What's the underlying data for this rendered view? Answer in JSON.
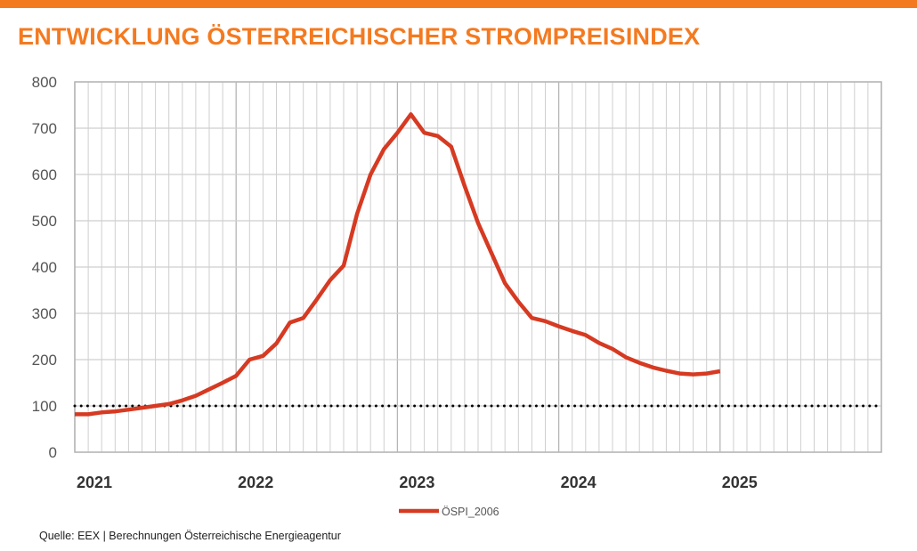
{
  "header": {
    "title": "ENTWICKLUNG ÖSTERREICHISCHER STROMPREISINDEX"
  },
  "footer": {
    "source": "Quelle: EEX | Berechnungen Österreichische Energieagentur"
  },
  "colors": {
    "accent": "#F47A20",
    "series": "#D63A22",
    "grid": "#CFCFCF",
    "reference": "#000000"
  },
  "chart_data": {
    "type": "line",
    "title": "",
    "xlabel": "",
    "ylabel": "",
    "ylim": [
      0,
      800
    ],
    "yticks": [
      0,
      100,
      200,
      300,
      400,
      500,
      600,
      700,
      800
    ],
    "xlim": [
      "2021-01",
      "2026-01"
    ],
    "xticks": [
      "2021",
      "2022",
      "2023",
      "2024",
      "2025"
    ],
    "grid": true,
    "legend": "bottom-center",
    "reference_line": {
      "y": 100,
      "style": "dotted"
    },
    "series": [
      {
        "name": "ÖSPI_2006",
        "x": [
          "2021-01",
          "2021-02",
          "2021-03",
          "2021-04",
          "2021-05",
          "2021-06",
          "2021-07",
          "2021-08",
          "2021-09",
          "2021-10",
          "2021-11",
          "2021-12",
          "2022-01",
          "2022-02",
          "2022-03",
          "2022-04",
          "2022-05",
          "2022-06",
          "2022-07",
          "2022-08",
          "2022-09",
          "2022-10",
          "2022-11",
          "2022-12",
          "2023-01",
          "2023-02",
          "2023-03",
          "2023-04",
          "2023-05",
          "2023-06",
          "2023-07",
          "2023-08",
          "2023-09",
          "2023-10",
          "2023-11",
          "2023-12",
          "2024-01",
          "2024-02",
          "2024-03",
          "2024-04",
          "2024-05",
          "2024-06",
          "2024-07",
          "2024-08",
          "2024-09",
          "2024-10",
          "2024-11",
          "2024-12",
          "2025-01"
        ],
        "values": [
          82,
          82,
          86,
          88,
          92,
          96,
          100,
          104,
          112,
          122,
          136,
          150,
          165,
          200,
          208,
          235,
          280,
          290,
          330,
          372,
          403,
          515,
          600,
          655,
          690,
          730,
          690,
          683,
          660,
          575,
          495,
          430,
          365,
          325,
          290,
          283,
          272,
          262,
          253,
          236,
          223,
          205,
          193,
          183,
          176,
          170,
          168,
          170,
          175
        ]
      }
    ]
  }
}
